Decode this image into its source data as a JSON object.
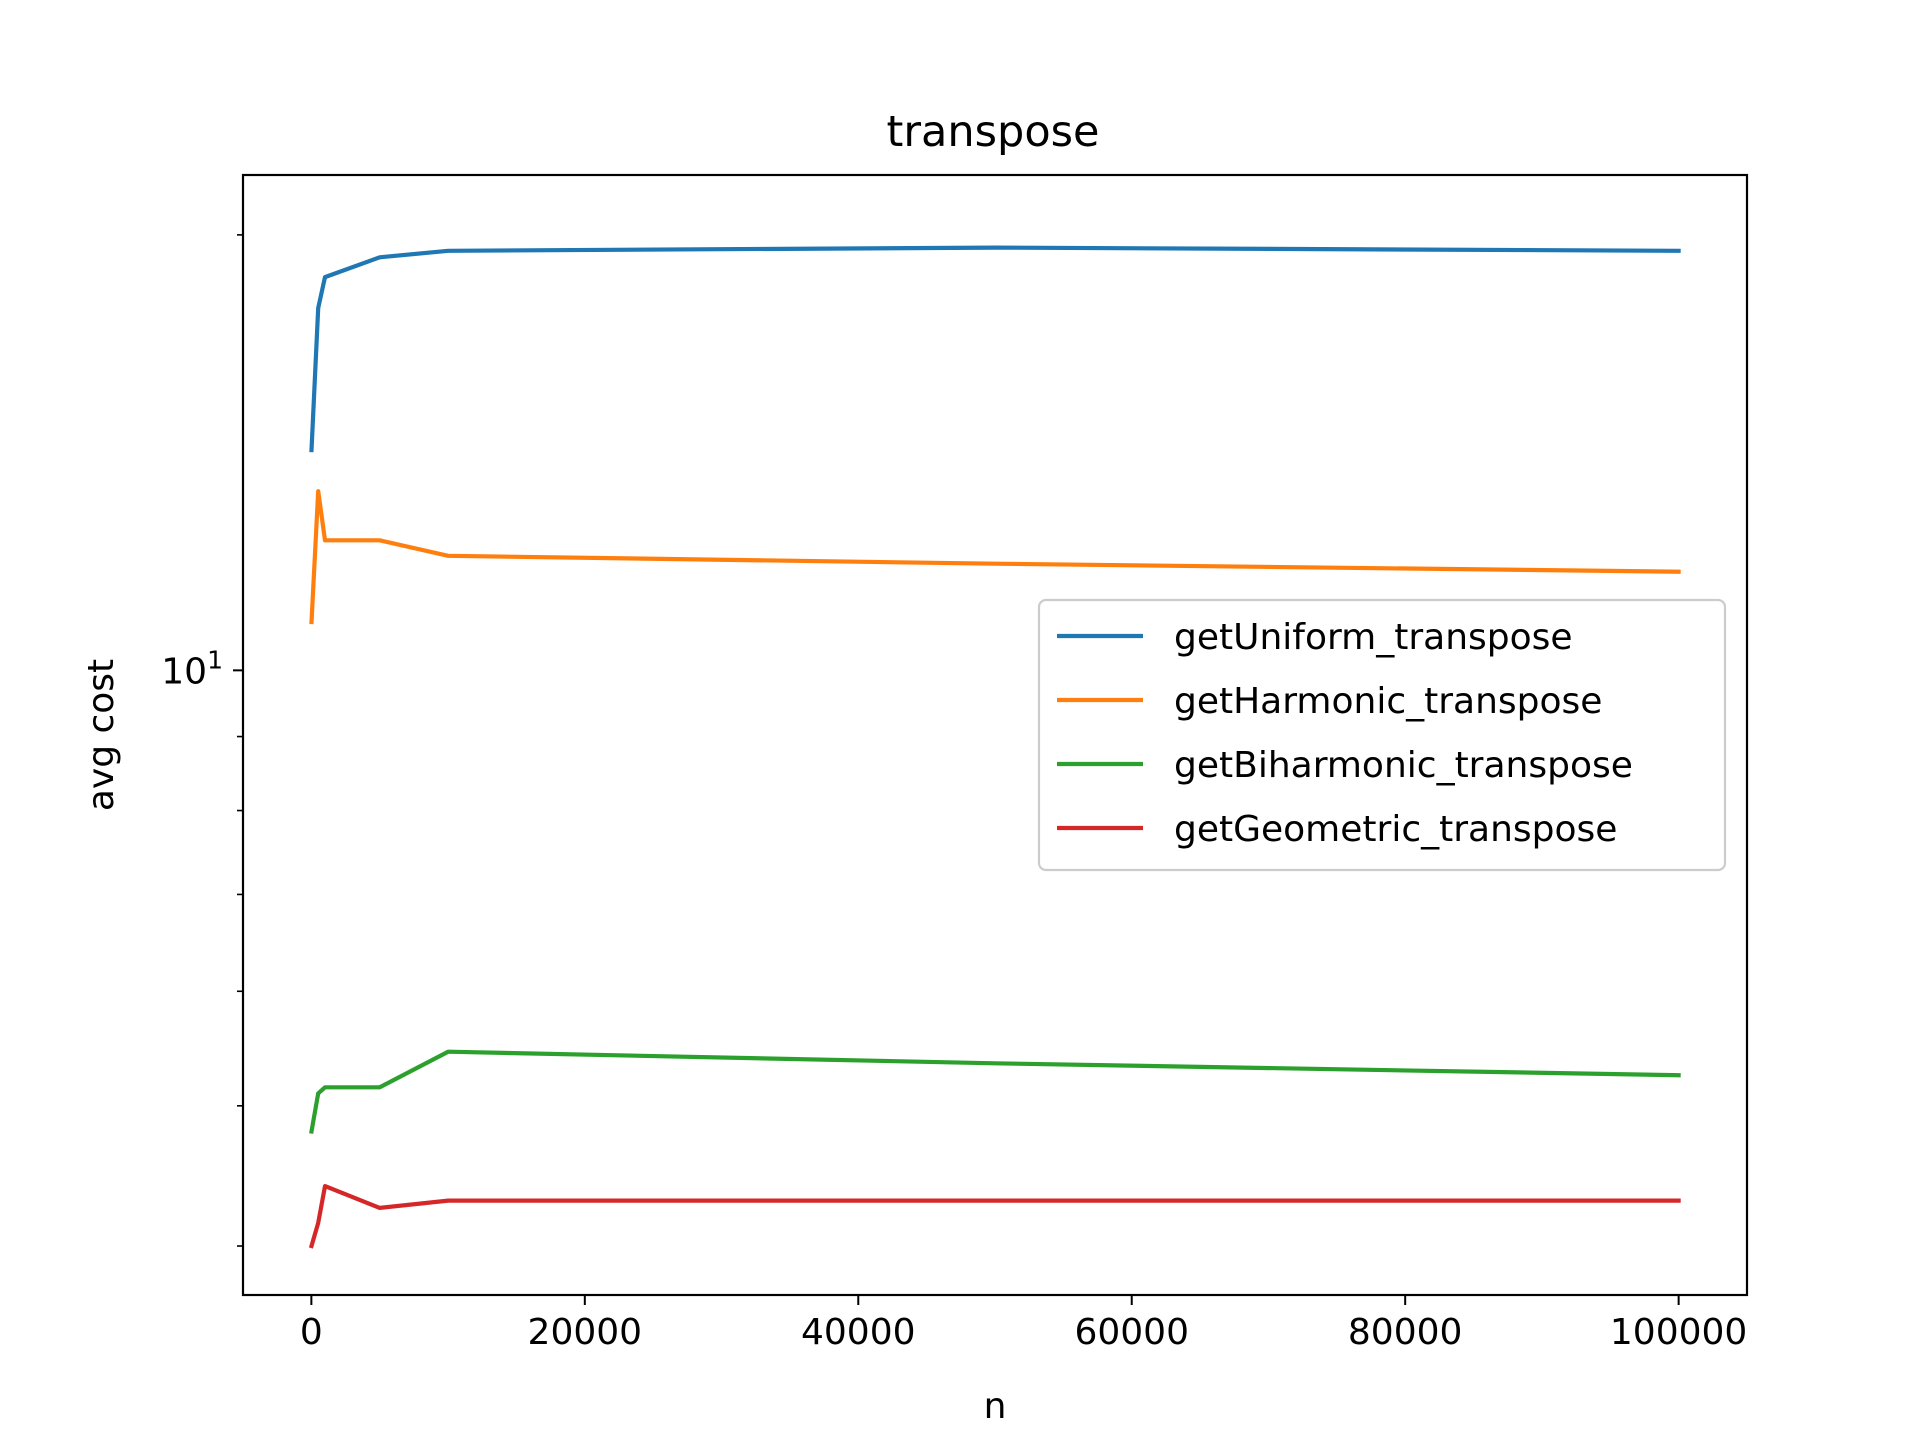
{
  "chart_data": {
    "type": "line",
    "title": "transpose",
    "xlabel": "n",
    "ylabel": "avg cost",
    "x_scale": "linear",
    "y_scale": "log",
    "xlim": [
      -5000,
      105000
    ],
    "ylim": [
      3.7,
      22.0
    ],
    "x_ticks": [
      0,
      20000,
      40000,
      60000,
      80000,
      100000
    ],
    "x_tick_labels": [
      "0",
      "20000",
      "40000",
      "60000",
      "80000",
      "100000"
    ],
    "y_major_ticks": [
      10
    ],
    "y_major_tick_base": "10",
    "y_major_tick_exponent": "1",
    "y_minor_ticks": [
      4,
      5,
      6,
      7,
      8,
      9,
      20
    ],
    "grid": false,
    "legend_position": "center-right",
    "x": [
      10,
      500,
      1000,
      5000,
      10000,
      50000,
      100000
    ],
    "series": [
      {
        "name": "getUniform_transpose",
        "color": "#1f77b4",
        "values": [
          14.2,
          17.8,
          18.7,
          19.3,
          19.5,
          19.6,
          19.5
        ]
      },
      {
        "name": "getHarmonic_transpose",
        "color": "#ff7f0e",
        "values": [
          10.8,
          13.3,
          12.3,
          12.3,
          12.0,
          11.85,
          11.7
        ]
      },
      {
        "name": "getBiharmonic_transpose",
        "color": "#2ca02c",
        "values": [
          4.8,
          5.1,
          5.15,
          5.15,
          5.45,
          5.35,
          5.25
        ]
      },
      {
        "name": "getGeometric_transpose",
        "color": "#d62728",
        "values": [
          4.0,
          4.15,
          4.4,
          4.25,
          4.3,
          4.3,
          4.3
        ]
      }
    ]
  }
}
